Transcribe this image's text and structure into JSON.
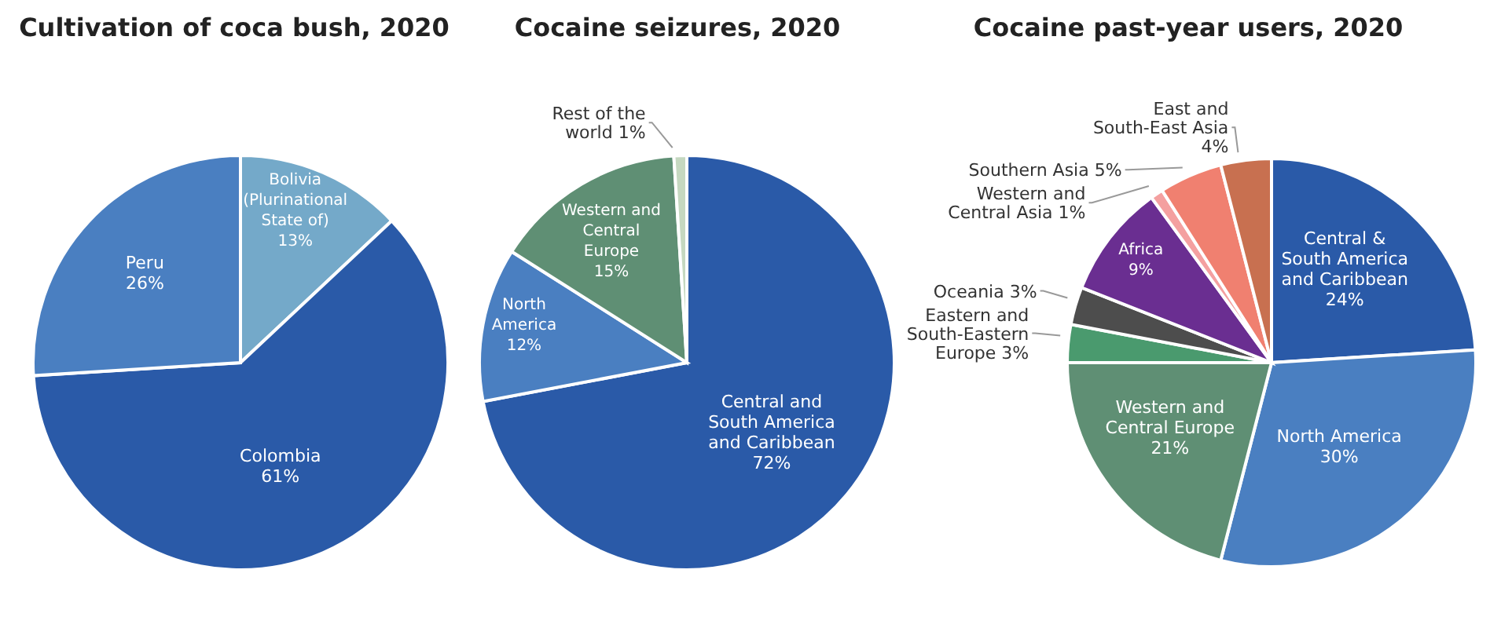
{
  "chart_data": [
    {
      "type": "pie",
      "title": "Cultivation of coca bush, 2020",
      "categories": [
        "Bolivia (Plurinational State of)",
        "Colombia",
        "Peru"
      ],
      "values": [
        13,
        61,
        26
      ],
      "value_labels": [
        "13%",
        "61%",
        "26%"
      ],
      "colors": [
        "#74a9c9",
        "#2a5aa8",
        "#4a7fc1"
      ]
    },
    {
      "type": "pie",
      "title": "Cocaine seizures, 2020",
      "categories": [
        "Central and South America and Caribbean",
        "North America",
        "Western and Central Europe",
        "Rest of the world"
      ],
      "values": [
        72,
        12,
        15,
        1
      ],
      "value_labels": [
        "72%",
        "12%",
        "15%",
        "1%"
      ],
      "colors": [
        "#2a5aa8",
        "#4a7fc1",
        "#5f8f74",
        "#c5d8c0"
      ]
    },
    {
      "type": "pie",
      "title": "Cocaine past-year users, 2020",
      "categories": [
        "Central & South America and Caribbean",
        "North America",
        "Western and Central Europe",
        "Eastern and South-Eastern Europe",
        "Oceania",
        "Africa",
        "Western and Central Asia",
        "Southern Asia",
        "East and South-East Asia"
      ],
      "values": [
        24,
        30,
        21,
        3,
        3,
        9,
        1,
        5,
        4
      ],
      "value_labels": [
        "24%",
        "30%",
        "21%",
        "3%",
        "3%",
        "9%",
        "1%",
        "5%",
        "4%"
      ],
      "colors": [
        "#2a5aa8",
        "#4a7fc1",
        "#5f8f74",
        "#4a9a6e",
        "#4d4d4d",
        "#6a2e91",
        "#f4a0a0",
        "#f08070",
        "#c87050"
      ]
    }
  ]
}
